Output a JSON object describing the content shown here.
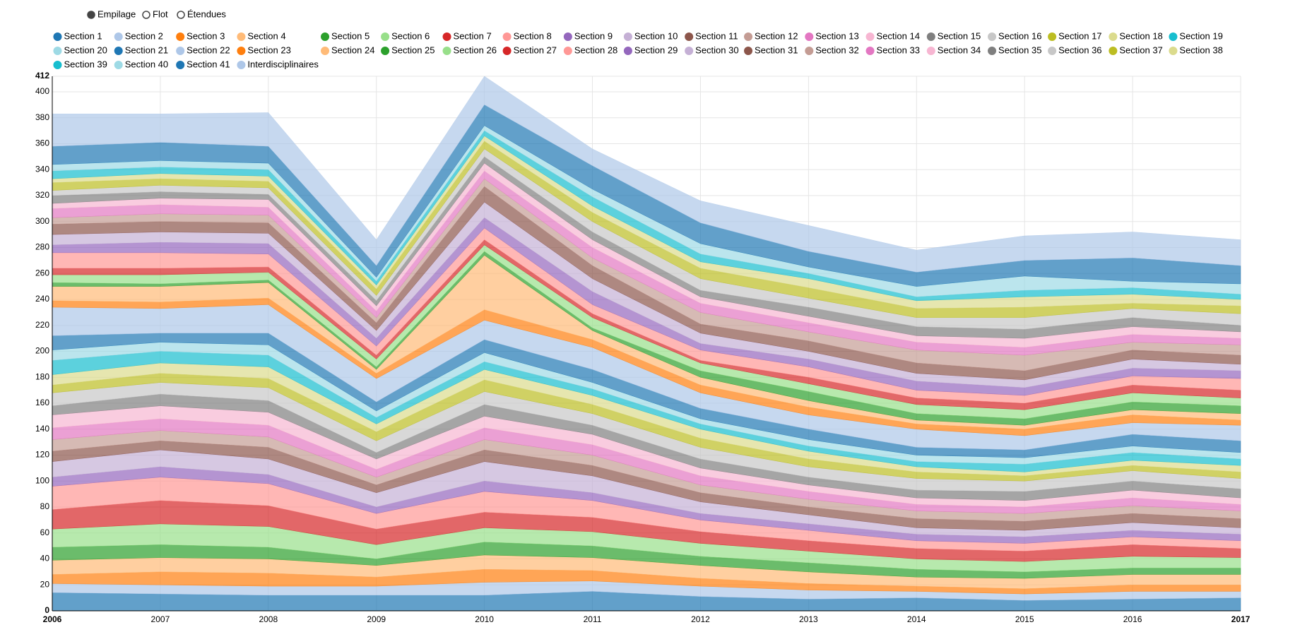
{
  "chart_data": {
    "type": "stacked_area",
    "controls": [
      {
        "label": "Empilage",
        "checked": true
      },
      {
        "label": "Flot",
        "checked": false
      },
      {
        "label": "Étendues",
        "checked": false
      }
    ],
    "x": [
      2006,
      2007,
      2008,
      2009,
      2010,
      2011,
      2012,
      2013,
      2014,
      2015,
      2016,
      2017
    ],
    "xlim": [
      2006,
      2017
    ],
    "xticks": [
      2006,
      2007,
      2008,
      2009,
      2010,
      2011,
      2012,
      2013,
      2014,
      2015,
      2016,
      2017
    ],
    "ylim": [
      0,
      412
    ],
    "yticks": [
      0,
      20,
      40,
      60,
      80,
      100,
      120,
      140,
      160,
      180,
      200,
      220,
      240,
      260,
      280,
      300,
      320,
      340,
      360,
      380,
      400,
      412
    ],
    "grid": true,
    "series": [
      {
        "name": "Section 1",
        "color": "#1f77b4",
        "values": [
          14,
          13,
          12,
          12,
          12,
          15,
          11,
          9,
          10,
          8,
          9,
          10
        ]
      },
      {
        "name": "Section 2",
        "color": "#aec7e8",
        "values": [
          7,
          7,
          7,
          7,
          10,
          8,
          8,
          7,
          5,
          5,
          6,
          5
        ]
      },
      {
        "name": "Section 3",
        "color": "#ff7f0e",
        "values": [
          7,
          10,
          10,
          7,
          10,
          8,
          6,
          5,
          4,
          4,
          5,
          5
        ]
      },
      {
        "name": "Section 4",
        "color": "#ffbb78",
        "values": [
          11,
          11,
          11,
          9,
          11,
          10,
          10,
          9,
          7,
          8,
          8,
          8
        ]
      },
      {
        "name": "Section 5",
        "color": "#2ca02c",
        "values": [
          10,
          10,
          9,
          5,
          10,
          9,
          7,
          7,
          6,
          5,
          5,
          5
        ]
      },
      {
        "name": "Section 6",
        "color": "#98df8a",
        "values": [
          14,
          16,
          16,
          11,
          11,
          11,
          10,
          9,
          8,
          8,
          9,
          8
        ]
      },
      {
        "name": "Section 7",
        "color": "#d62728",
        "values": [
          15,
          18,
          16,
          12,
          12,
          11,
          9,
          8,
          8,
          8,
          9,
          7
        ]
      },
      {
        "name": "Section 8",
        "color": "#ff9896",
        "values": [
          18,
          18,
          17,
          12,
          16,
          13,
          9,
          8,
          6,
          6,
          6,
          6
        ]
      },
      {
        "name": "Section 9",
        "color": "#9467bd",
        "values": [
          7,
          8,
          7,
          5,
          8,
          6,
          5,
          5,
          5,
          5,
          5,
          5
        ]
      },
      {
        "name": "Section 10",
        "color": "#c5b0d5",
        "values": [
          12,
          13,
          12,
          11,
          15,
          13,
          9,
          7,
          5,
          5,
          6,
          5
        ]
      },
      {
        "name": "Section 11",
        "color": "#8c564b",
        "values": [
          8,
          7,
          9,
          6,
          9,
          8,
          7,
          6,
          7,
          7,
          7,
          7
        ]
      },
      {
        "name": "Section 12",
        "color": "#c49c94",
        "values": [
          9,
          8,
          8,
          6,
          8,
          8,
          6,
          6,
          6,
          6,
          6,
          6
        ]
      },
      {
        "name": "Section 13",
        "color": "#e377c2",
        "values": [
          9,
          9,
          9,
          6,
          9,
          8,
          7,
          6,
          5,
          5,
          6,
          5
        ]
      },
      {
        "name": "Section 14",
        "color": "#f7b6d2",
        "values": [
          10,
          10,
          10,
          8,
          9,
          8,
          6,
          5,
          5,
          5,
          6,
          5
        ]
      },
      {
        "name": "Section 15",
        "color": "#7f7f7f",
        "values": [
          7,
          9,
          9,
          5,
          9,
          7,
          7,
          6,
          6,
          7,
          7,
          7
        ]
      },
      {
        "name": "Section 16",
        "color": "#c7c7c7",
        "values": [
          10,
          9,
          10,
          9,
          10,
          9,
          9,
          8,
          9,
          8,
          8,
          8
        ]
      },
      {
        "name": "Section 17",
        "color": "#bcbd22",
        "values": [
          6,
          7,
          7,
          7,
          9,
          7,
          7,
          6,
          5,
          4,
          4,
          5
        ]
      },
      {
        "name": "Section 18",
        "color": "#dbdb8d",
        "values": [
          8,
          8,
          9,
          6,
          8,
          7,
          7,
          6,
          4,
          3,
          4,
          5
        ]
      },
      {
        "name": "Section 19",
        "color": "#17becf",
        "values": [
          11,
          9,
          9,
          5,
          6,
          5,
          4,
          4,
          4,
          6,
          6,
          5
        ]
      },
      {
        "name": "Section 20",
        "color": "#9edae5",
        "values": [
          8,
          7,
          8,
          5,
          7,
          5,
          4,
          5,
          5,
          5,
          5,
          5
        ]
      },
      {
        "name": "Section 21",
        "color": "#1f77b4",
        "values": [
          11,
          7,
          9,
          7,
          10,
          10,
          8,
          8,
          6,
          6,
          9,
          9
        ]
      },
      {
        "name": "Section 22",
        "color": "#aec7e8",
        "values": [
          22,
          19,
          22,
          18,
          15,
          17,
          12,
          11,
          14,
          11,
          9,
          12
        ]
      },
      {
        "name": "Section 23",
        "color": "#ff7f0e",
        "values": [
          5,
          5,
          5,
          4,
          8,
          6,
          6,
          6,
          4,
          5,
          6,
          4
        ]
      },
      {
        "name": "Section 24",
        "color": "#ffbb78",
        "values": [
          11,
          12,
          12,
          3,
          42,
          7,
          6,
          5,
          3,
          3,
          4,
          5
        ]
      },
      {
        "name": "Section 25",
        "color": "#2ca02c",
        "values": [
          3,
          2,
          2,
          2,
          3,
          2,
          5,
          7,
          5,
          5,
          6,
          6
        ]
      },
      {
        "name": "Section 26",
        "color": "#98df8a",
        "values": [
          6,
          7,
          6,
          6,
          5,
          8,
          6,
          6,
          7,
          7,
          7,
          6
        ]
      },
      {
        "name": "Section 27",
        "color": "#d62728",
        "values": [
          5,
          5,
          4,
          3,
          4,
          3,
          2,
          5,
          5,
          5,
          6,
          6
        ]
      },
      {
        "name": "Section 28",
        "color": "#ff9896",
        "values": [
          12,
          12,
          10,
          7,
          9,
          7,
          8,
          8,
          6,
          6,
          7,
          9
        ]
      },
      {
        "name": "Section 29",
        "color": "#9467bd",
        "values": [
          6,
          8,
          8,
          6,
          8,
          10,
          5,
          6,
          7,
          6,
          6,
          6
        ]
      },
      {
        "name": "Section 30",
        "color": "#c5b0d5",
        "values": [
          8,
          8,
          8,
          6,
          12,
          10,
          8,
          6,
          6,
          6,
          7,
          5
        ]
      },
      {
        "name": "Section 31",
        "color": "#8c564b",
        "values": [
          8,
          8,
          8,
          6,
          12,
          10,
          7,
          8,
          8,
          7,
          7,
          7
        ]
      },
      {
        "name": "Section 32",
        "color": "#c49c94",
        "values": [
          5,
          6,
          6,
          4,
          6,
          6,
          9,
          7,
          10,
          12,
          6,
          8
        ]
      },
      {
        "name": "Section 33",
        "color": "#e377c2",
        "values": [
          7,
          7,
          6,
          5,
          6,
          8,
          7,
          7,
          6,
          6,
          6,
          5
        ]
      },
      {
        "name": "Section 34",
        "color": "#f7b6d2",
        "values": [
          4,
          5,
          6,
          4,
          6,
          6,
          5,
          5,
          5,
          7,
          6,
          5
        ]
      },
      {
        "name": "Section 35",
        "color": "#7f7f7f",
        "values": [
          6,
          5,
          4,
          4,
          5,
          6,
          5,
          7,
          7,
          7,
          7,
          5
        ]
      },
      {
        "name": "Section 36",
        "color": "#c7c7c7",
        "values": [
          4,
          5,
          5,
          4,
          6,
          8,
          9,
          7,
          7,
          9,
          7,
          9
        ]
      },
      {
        "name": "Section 37",
        "color": "#bcbd22",
        "values": [
          6,
          5,
          5,
          5,
          6,
          7,
          8,
          8,
          7,
          8,
          4,
          6
        ]
      },
      {
        "name": "Section 38",
        "color": "#dbdb8d",
        "values": [
          3,
          4,
          4,
          3,
          4,
          5,
          5,
          7,
          6,
          8,
          7,
          5
        ]
      },
      {
        "name": "Section 39",
        "color": "#17becf",
        "values": [
          6,
          5,
          5,
          3,
          4,
          7,
          6,
          4,
          3,
          5,
          5,
          4
        ]
      },
      {
        "name": "Section 40",
        "color": "#9edae5",
        "values": [
          5,
          5,
          5,
          3,
          4,
          6,
          8,
          5,
          8,
          11,
          5,
          8
        ]
      },
      {
        "name": "Section 41",
        "color": "#1f77b4",
        "values": [
          14,
          14,
          13,
          9,
          16,
          18,
          16,
          12,
          11,
          12,
          18,
          14
        ]
      },
      {
        "name": "Interdisciplinaires",
        "color": "#aec7e8",
        "values": [
          25,
          22,
          26,
          20,
          22,
          13,
          17,
          20,
          17,
          19,
          20,
          20
        ]
      }
    ]
  }
}
